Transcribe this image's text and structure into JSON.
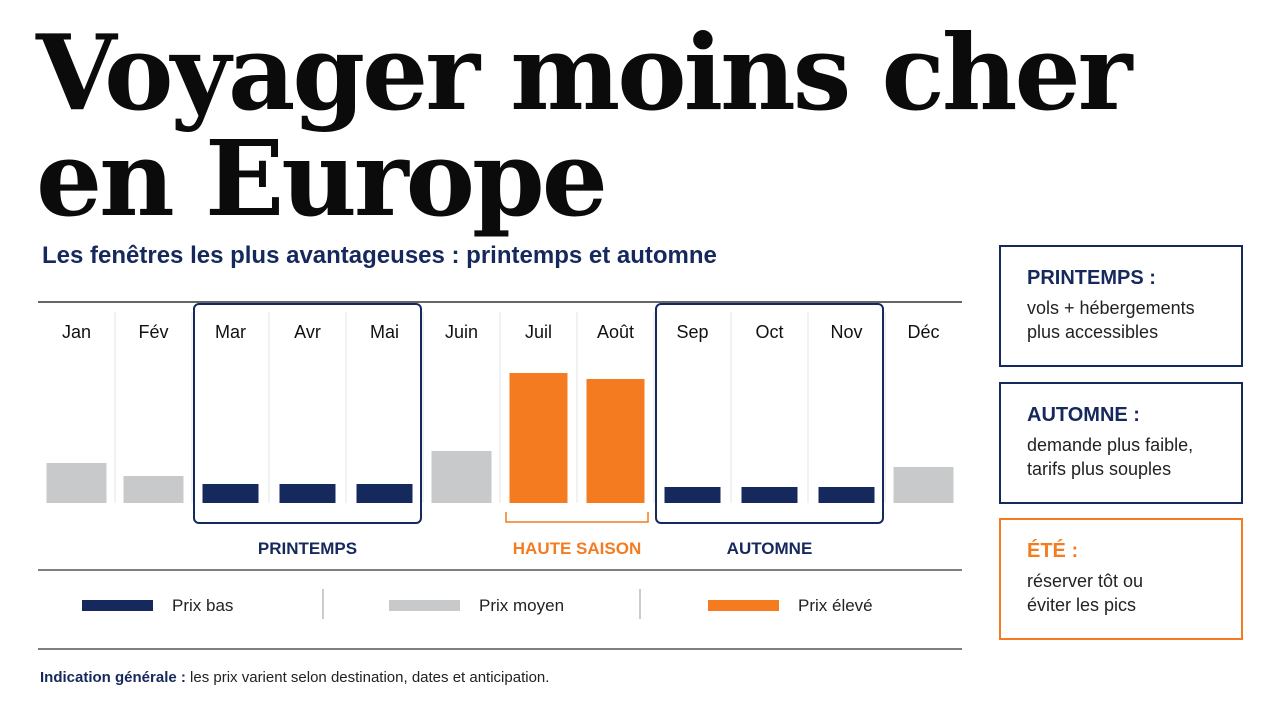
{
  "title": {
    "line1": "Voyager moins cher",
    "line2": "en Europe"
  },
  "subtitle": "Les fenêtres les plus avantageuses : printemps et automne",
  "colors": {
    "low": "#16295c",
    "mid": "#c8c9cb",
    "high": "#f47b20",
    "navy": "#16295c",
    "orange": "#f47b20"
  },
  "chart_data": {
    "type": "bar",
    "categories": [
      "Jan",
      "Fév",
      "Mar",
      "Avr",
      "Mai",
      "Juin",
      "Juil",
      "Août",
      "Sep",
      "Oct",
      "Nov",
      "Déc"
    ],
    "values": [
      40,
      27,
      19,
      19,
      19,
      52,
      130,
      124,
      16,
      16,
      16,
      36
    ],
    "price_levels": [
      "moyen",
      "moyen",
      "bas",
      "bas",
      "bas",
      "moyen",
      "élevé",
      "élevé",
      "bas",
      "bas",
      "bas",
      "moyen"
    ],
    "ylim": [
      0,
      190
    ],
    "groups": [
      {
        "label": "PRINTEMPS",
        "months": [
          "Mar",
          "Avr",
          "Mai"
        ],
        "style": "box"
      },
      {
        "label": "HAUTE SAISON",
        "months": [
          "Juil",
          "Août"
        ],
        "style": "bracket"
      },
      {
        "label": "AUTOMNE",
        "months": [
          "Sep",
          "Oct",
          "Nov"
        ],
        "style": "box"
      }
    ],
    "legend": [
      {
        "key": "low",
        "label": "Prix bas"
      },
      {
        "key": "mid",
        "label": "Prix moyen"
      },
      {
        "key": "high",
        "label": "Prix élevé"
      }
    ]
  },
  "side_boxes": [
    {
      "title": "PRINTEMPS :",
      "body": "vols + hébergements\nplus accessibles",
      "accent": "navy"
    },
    {
      "title": "AUTOMNE :",
      "body": "demande plus faible,\ntarifs plus souples",
      "accent": "navy"
    },
    {
      "title": "ÉTÉ :",
      "body": "réserver tôt ou\néviter les pics",
      "accent": "orange"
    }
  ],
  "note": {
    "label": "Indication générale :",
    "text": " les prix varient selon destination, dates et anticipation."
  }
}
